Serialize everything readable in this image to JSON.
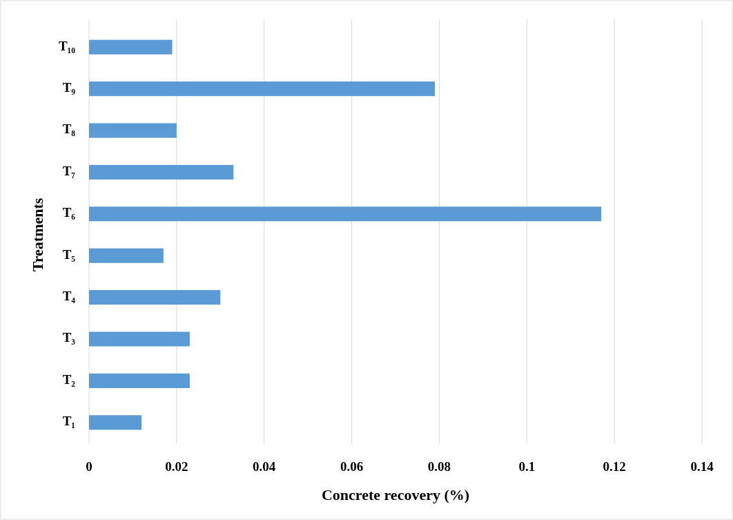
{
  "chart_data": {
    "type": "bar",
    "orientation": "horizontal",
    "xlabel": "Concrete recovery (%)",
    "ylabel": "Treatments",
    "categories": [
      "T₁₀",
      "T₉",
      "T₈",
      "T₇",
      "T₆",
      "T₅",
      "T₄",
      "T₃",
      "T₂",
      "T₁"
    ],
    "values": [
      0.019,
      0.079,
      0.02,
      0.033,
      0.117,
      0.017,
      0.03,
      0.023,
      0.023,
      0.012
    ],
    "color": "#5b9bd5",
    "xlim": [
      0,
      0.14
    ],
    "xticks": [
      0,
      0.02,
      0.04,
      0.06,
      0.08,
      0.1,
      0.12,
      0.14
    ],
    "grid": "x"
  }
}
